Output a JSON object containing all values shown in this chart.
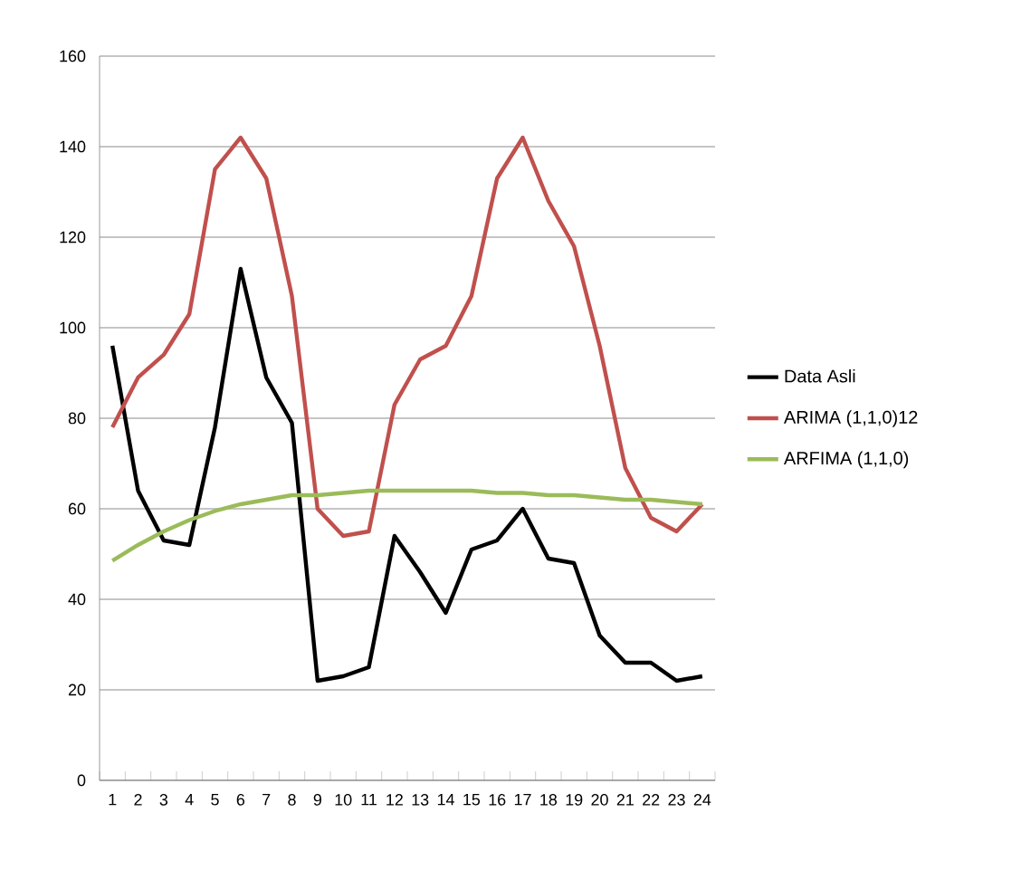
{
  "chart_data": {
    "type": "line",
    "categories": [
      "1",
      "2",
      "3",
      "4",
      "5",
      "6",
      "7",
      "8",
      "9",
      "10",
      "11",
      "12",
      "13",
      "14",
      "15",
      "16",
      "17",
      "18",
      "19",
      "20",
      "21",
      "22",
      "23",
      "24"
    ],
    "series": [
      {
        "name": "Data Asli",
        "color": "#000000",
        "values": [
          96,
          64,
          53,
          52,
          78,
          113,
          89,
          79,
          22,
          23,
          25,
          54,
          46,
          37,
          51,
          53,
          60,
          49,
          48,
          32,
          26,
          26,
          22,
          23
        ]
      },
      {
        "name": "ARIMA (1,1,0)12",
        "color": "#c0504d",
        "values": [
          78,
          89,
          94,
          103,
          135,
          142,
          133,
          107,
          60,
          54,
          55,
          83,
          93,
          96,
          107,
          133,
          142,
          128,
          118,
          96,
          69,
          58,
          55,
          61
        ]
      },
      {
        "name": "ARFIMA (1,1,0)",
        "color": "#9bbb59",
        "values": [
          48.5,
          52,
          55,
          57.5,
          59.5,
          61,
          62,
          63,
          63,
          63.5,
          64,
          64,
          64,
          64,
          64,
          63.5,
          63.5,
          63,
          63,
          62.5,
          62,
          62,
          61.5,
          61
        ]
      }
    ],
    "ylim": [
      0,
      160
    ],
    "yticks": [
      0,
      20,
      40,
      60,
      80,
      100,
      120,
      140,
      160
    ],
    "grid": "y",
    "legend": "right",
    "marker": "none",
    "line_style": "solid"
  }
}
